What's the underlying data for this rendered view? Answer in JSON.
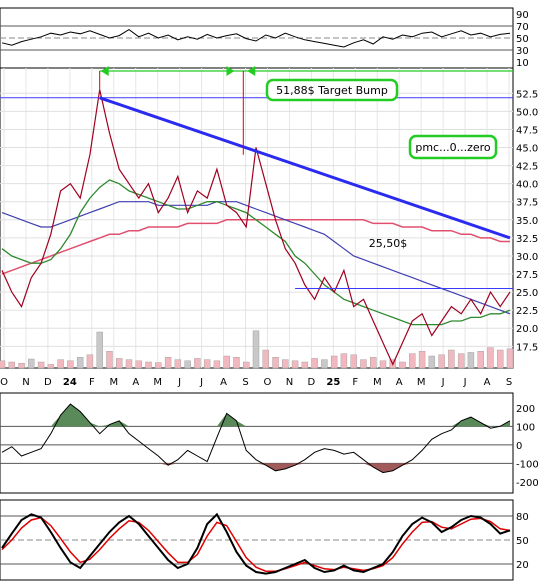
{
  "chart_data": [
    {
      "panel": "rsi-top",
      "type": "line",
      "y_ticks": [
        "90",
        "70",
        "50",
        "30",
        "10"
      ],
      "ylim": [
        0,
        100
      ],
      "reference_lines": [
        70,
        50,
        30
      ],
      "series": [
        {
          "values": [
            42,
            38,
            44,
            48,
            52,
            58,
            55,
            60,
            57,
            62,
            56,
            50,
            54,
            64,
            52,
            58,
            50,
            55,
            47,
            52,
            48,
            56,
            50,
            54,
            57,
            49,
            45,
            55,
            50,
            58,
            52,
            47,
            44,
            41,
            38,
            35,
            42,
            47,
            40,
            52,
            48,
            55,
            52,
            58,
            60,
            52,
            57,
            62,
            55,
            58,
            52,
            56,
            58
          ]
        }
      ]
    },
    {
      "panel": "price",
      "type": "line",
      "ylim": [
        14.5,
        56
      ],
      "y_ticks": [
        "52.5",
        "50.0",
        "47.5",
        "45.0",
        "42.5",
        "40.0",
        "37.5",
        "35.0",
        "32.5",
        "30.0",
        "27.5",
        "25.0",
        "22.5",
        "20.0",
        "17.5"
      ],
      "x_labels": [
        "O",
        "N",
        "D",
        "24",
        "F",
        "M",
        "A",
        "M",
        "J",
        "J",
        "A",
        "S",
        "O",
        "N",
        "D",
        "25",
        "F",
        "M",
        "A",
        "M",
        "J",
        "J",
        "A",
        "S"
      ],
      "bold_x_labels": [
        "24",
        "25"
      ],
      "price": [
        28,
        25,
        23,
        27,
        29,
        33,
        39,
        40,
        38,
        44,
        53,
        47,
        42,
        40,
        38,
        40,
        36,
        38,
        41,
        36,
        39,
        38,
        42,
        37,
        36,
        34,
        45,
        40,
        35,
        31,
        29,
        26,
        24,
        27,
        25,
        28,
        23,
        24,
        21,
        18,
        15,
        18,
        21,
        22,
        19,
        21,
        23,
        22,
        24,
        22,
        25,
        23,
        25
      ],
      "ma_green": [
        31,
        30,
        29.5,
        29,
        29,
        29.5,
        31,
        33,
        36,
        38,
        39.5,
        40.5,
        40,
        39,
        38.5,
        38,
        37.5,
        37,
        36.5,
        36.5,
        37,
        37.5,
        37.5,
        37,
        36.5,
        36,
        35,
        34,
        33,
        32,
        30,
        29,
        27.5,
        26,
        25,
        24,
        23.5,
        23,
        22.5,
        22,
        21.5,
        21,
        20.5,
        20.5,
        20.5,
        20.5,
        21,
        21,
        21.5,
        21.5,
        22,
        22,
        22.5
      ],
      "ma_blue": [
        36,
        35.5,
        35,
        34.5,
        34,
        34,
        34.5,
        35,
        35.5,
        36,
        36.5,
        37,
        37.5,
        37.5,
        37.5,
        37.5,
        37,
        37,
        37,
        37,
        37,
        37,
        37.5,
        37.5,
        37.5,
        37,
        36.5,
        36,
        35.5,
        35,
        34.5,
        34,
        33.5,
        33,
        32,
        31,
        30,
        29.5,
        29,
        28.5,
        28,
        27.5,
        27,
        26.5,
        26,
        25.5,
        25,
        24.5,
        24,
        23.5,
        23,
        22.5,
        22
      ],
      "ma_red": [
        27.5,
        28,
        28.5,
        29,
        29.5,
        30,
        30.5,
        31,
        31.5,
        32,
        32.5,
        33,
        33,
        33.5,
        33.5,
        34,
        34,
        34,
        34,
        34.5,
        34.5,
        34.5,
        34.5,
        35,
        35,
        35,
        35,
        35,
        35,
        35,
        35,
        35,
        35,
        35,
        35,
        35,
        35,
        35,
        34.5,
        34.5,
        34.5,
        34,
        34,
        34,
        33.5,
        33.5,
        33.5,
        33,
        33,
        32.5,
        32.5,
        32,
        32
      ],
      "volume": [
        12,
        10,
        8,
        15,
        10,
        6,
        14,
        12,
        18,
        22,
        60,
        28,
        16,
        14,
        12,
        10,
        9,
        18,
        14,
        12,
        16,
        14,
        12,
        20,
        18,
        10,
        62,
        30,
        18,
        14,
        12,
        10,
        16,
        14,
        20,
        24,
        22,
        14,
        18,
        12,
        14,
        10,
        24,
        28,
        20,
        22,
        30,
        24,
        26,
        28,
        34,
        30,
        32
      ],
      "annotations": [
        "51,88$ Target Bump",
        "pmc...0...zero",
        "25,50$"
      ],
      "horizontal_levels": [
        51.88,
        25.5
      ],
      "trendline": [
        [
          10,
          51.88
        ],
        [
          52,
          32.5
        ]
      ]
    },
    {
      "panel": "cci",
      "type": "area",
      "y_ticks": [
        "200",
        "100",
        "0",
        "-100",
        "-200"
      ],
      "ylim": [
        -260,
        280
      ],
      "reference_lines": [
        100,
        0,
        -100
      ],
      "series": [
        {
          "values": [
            -40,
            -10,
            -60,
            -40,
            -20,
            60,
            160,
            220,
            180,
            120,
            60,
            110,
            130,
            60,
            20,
            -20,
            -60,
            -110,
            -80,
            -30,
            -60,
            -90,
            40,
            170,
            130,
            -30,
            -80,
            -110,
            -140,
            -130,
            -110,
            -80,
            -40,
            -20,
            -30,
            -50,
            -40,
            -80,
            -120,
            -150,
            -140,
            -110,
            -80,
            -30,
            30,
            60,
            80,
            130,
            150,
            120,
            90,
            100,
            130
          ]
        }
      ]
    },
    {
      "panel": "stoch",
      "type": "line",
      "y_ticks": [
        "80",
        "50",
        "20"
      ],
      "ylim": [
        0,
        100
      ],
      "reference_lines": [
        80,
        50,
        20
      ],
      "series": [
        {
          "color": "#000000",
          "values": [
            40,
            58,
            75,
            82,
            78,
            60,
            40,
            22,
            15,
            30,
            45,
            60,
            72,
            80,
            70,
            55,
            40,
            25,
            15,
            20,
            40,
            70,
            82,
            60,
            35,
            18,
            10,
            8,
            10,
            15,
            20,
            25,
            15,
            10,
            12,
            18,
            12,
            10,
            15,
            20,
            35,
            55,
            70,
            78,
            72,
            60,
            66,
            75,
            80,
            78,
            70,
            58,
            62
          ]
        },
        {
          "color": "#e00000",
          "values": [
            38,
            50,
            65,
            75,
            78,
            68,
            52,
            35,
            22,
            26,
            38,
            52,
            64,
            74,
            72,
            62,
            48,
            34,
            22,
            22,
            32,
            55,
            72,
            68,
            48,
            28,
            16,
            11,
            11,
            14,
            18,
            22,
            18,
            14,
            13,
            16,
            14,
            12,
            14,
            18,
            28,
            45,
            60,
            72,
            73,
            66,
            64,
            70,
            76,
            77,
            73,
            64,
            62
          ]
        }
      ]
    }
  ]
}
